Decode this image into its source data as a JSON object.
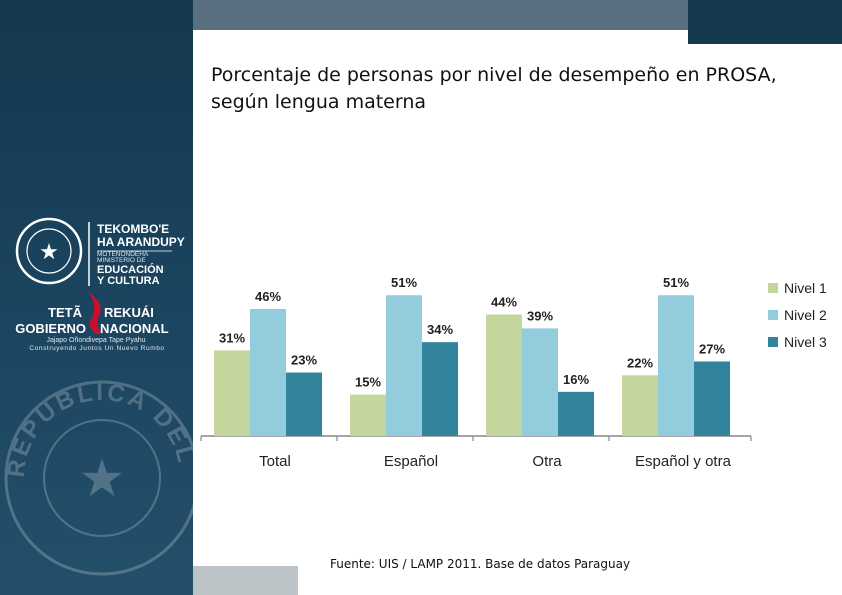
{
  "header": {
    "title_line1": "Porcentaje de personas por nivel de desempeño en PROSA,",
    "title_line2": "según lengua materna"
  },
  "footer": {
    "source": "Fuente:  UIS / LAMP 2011. Base de datos Paraguay"
  },
  "branding": {
    "ministry_line1": "TEKOMBO'E",
    "ministry_line2": "HA ARANDUPY",
    "ministry_line3": "MOTENONDEHA",
    "ministry_line4": "MINISTERIO DE",
    "ministry_line5": "EDUCACIÓN",
    "ministry_line6": "Y CULTURA",
    "gov_line1a": "TETÃ",
    "gov_line1b": "REKUÁI",
    "gov_line2a": "GOBIERNO",
    "gov_line2b": "NACIONAL",
    "gov_line3": "Jajapo Oñondivepa Tape Pyahu",
    "gov_line4": "Construyendo Juntos Un Nuevo Rumbo",
    "seal_text": "REPUBLICA DEL PARAGUAY"
  },
  "colors": {
    "nivel1": "#c3d69b",
    "nivel2": "#93cddd",
    "nivel3": "#31849b",
    "sidebar": "#1b4560"
  },
  "chart_data": {
    "type": "bar",
    "title": "Porcentaje de personas por nivel de desempeño en PROSA, según lengua materna",
    "categories": [
      "Total",
      "Español",
      "Otra",
      "Español y otra"
    ],
    "series": [
      {
        "name": "Nivel 1",
        "values": [
          31,
          15,
          44,
          22
        ],
        "labels": [
          "31%",
          "15%",
          "44%",
          "22%"
        ]
      },
      {
        "name": "Nivel 2",
        "values": [
          46,
          51,
          39,
          51
        ],
        "labels": [
          "46%",
          "51%",
          "39%",
          "51%"
        ]
      },
      {
        "name": "Nivel 3",
        "values": [
          23,
          34,
          16,
          27
        ],
        "labels": [
          "23%",
          "34%",
          "16%",
          "27%"
        ]
      }
    ],
    "ylim": [
      0,
      60
    ],
    "xlabel": "",
    "ylabel": "",
    "grid": false,
    "legend": "right"
  }
}
